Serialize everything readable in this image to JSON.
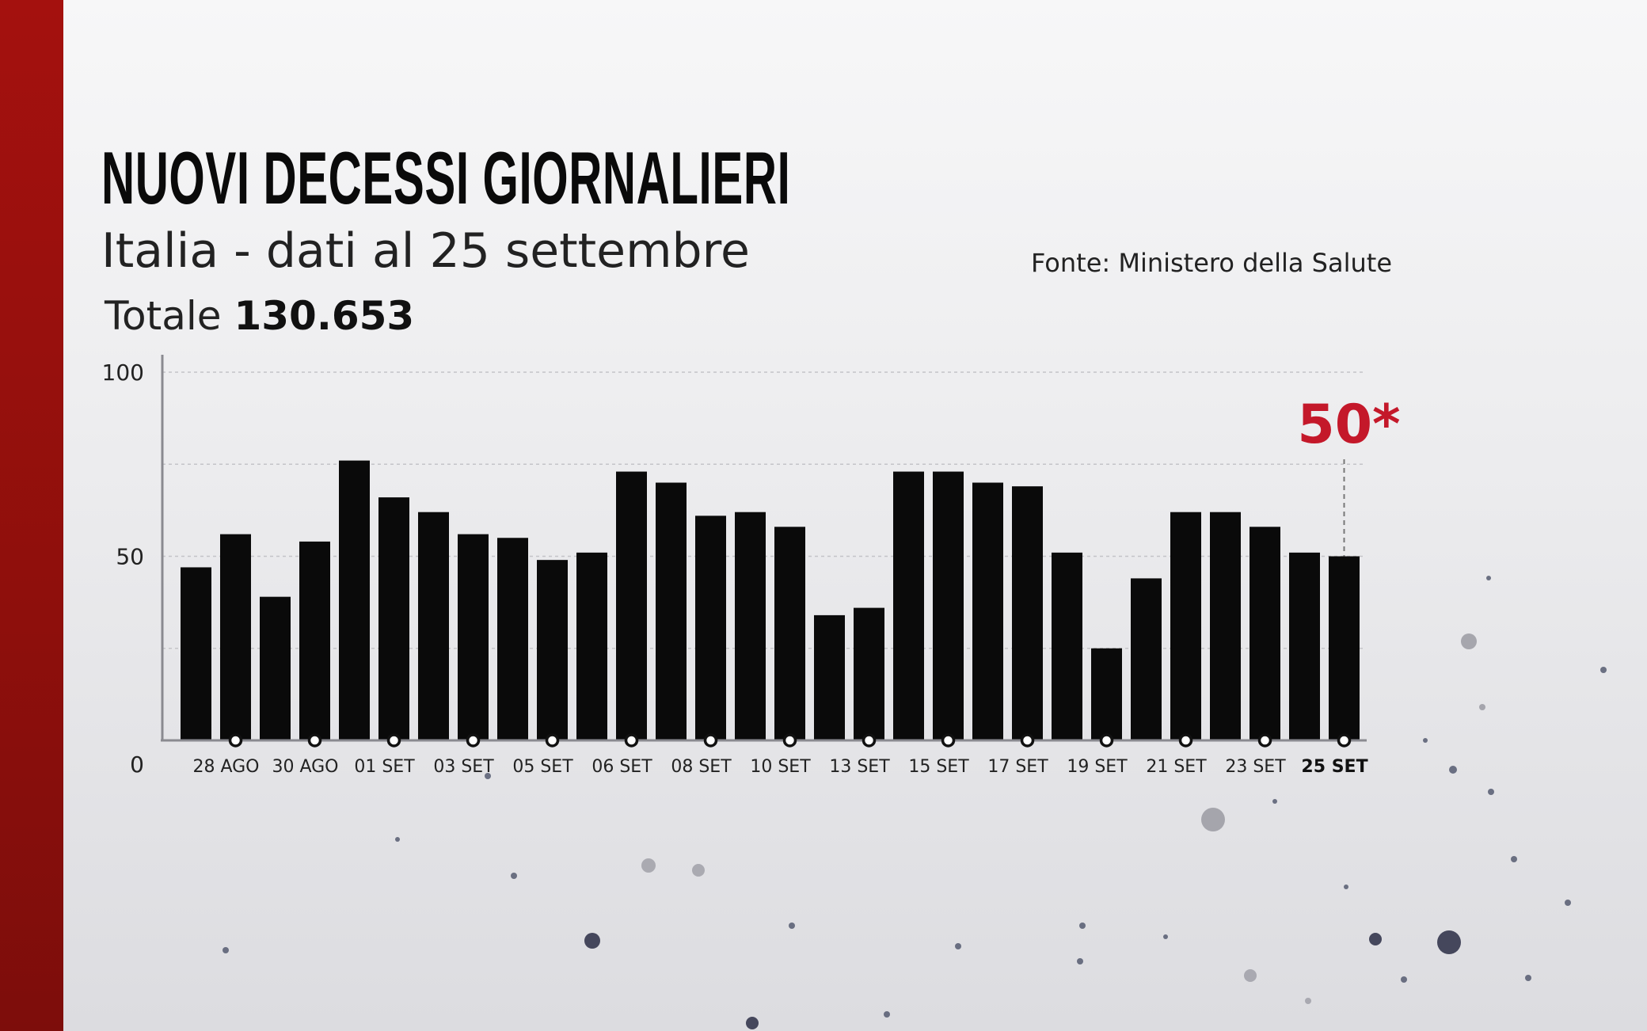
{
  "header": {
    "title": "NUOVI DECESSI GIORNALIERI",
    "subtitle": "Italia - dati al 25 settembre",
    "total_label": "Totale",
    "total_value": "130.653",
    "source": "Fonte: Ministero della Salute"
  },
  "colors": {
    "accent_band": "#9b100d",
    "bars": "#0a0a0a",
    "highlight": "#c4182a"
  },
  "chart_data": {
    "type": "bar",
    "title": "NUOVI DECESSI GIORNALIERI",
    "subtitle": "Italia - dati al 25 settembre",
    "xlabel": "",
    "ylabel": "",
    "ylim": [
      0,
      100
    ],
    "yticks": [
      "0",
      "50",
      "100"
    ],
    "grid": true,
    "values": [
      47,
      56,
      39,
      54,
      76,
      66,
      62,
      56,
      55,
      49,
      51,
      73,
      70,
      61,
      62,
      58,
      34,
      36,
      73,
      73,
      70,
      69,
      51,
      25,
      44,
      62,
      62,
      58,
      51,
      50
    ],
    "tick_labels": [
      "28 AGO",
      "30 AGO",
      "01 SET",
      "03 SET",
      "05 SET",
      "06 SET",
      "08 SET",
      "10 SET",
      "13 SET",
      "15 SET",
      "17 SET",
      "19 SET",
      "21 SET",
      "23 SET",
      "25 SET"
    ],
    "tick_bar_index": [
      1,
      3,
      5,
      7,
      9,
      11,
      13,
      15,
      17,
      19,
      21,
      23,
      25,
      27,
      29
    ],
    "highlight_label": "50*"
  }
}
